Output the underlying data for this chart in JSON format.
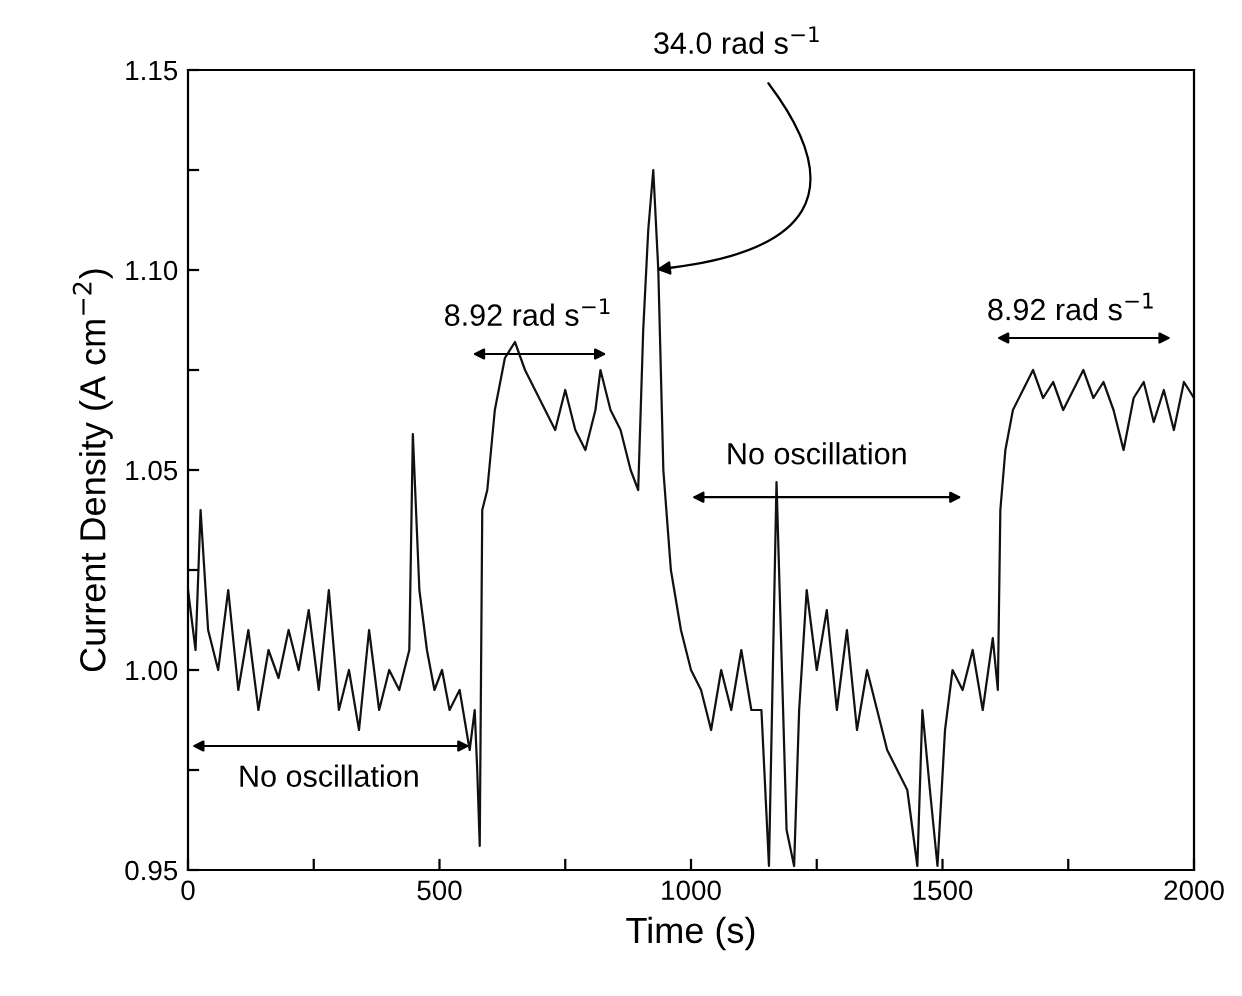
{
  "chart_data": {
    "type": "line",
    "xlabel": "Time (s)",
    "ylabel": "Current Density (A cm$^{−2}$)",
    "xlim": [
      0,
      2000
    ],
    "ylim": [
      0.95,
      1.15
    ],
    "xticks": [
      0,
      {
        "value": 250,
        "label": null
      },
      500,
      {
        "value": 750,
        "label": null
      },
      1000,
      {
        "value": 1250,
        "label": null
      },
      1500,
      {
        "value": 1750,
        "label": null
      },
      2000
    ],
    "yticks": [
      0.95,
      {
        "value": 0.975,
        "label": null
      },
      {
        "value": 1.0,
        "label": "1.00"
      },
      {
        "value": 1.025,
        "label": null
      },
      1.05,
      {
        "value": 1.075,
        "label": null
      },
      {
        "value": 1.1,
        "label": "1.10"
      },
      {
        "value": 1.125,
        "label": null
      },
      1.15
    ],
    "grid": false,
    "legend": false,
    "marker": "none",
    "line_style": "solid",
    "x": [
      0,
      15,
      25,
      40,
      60,
      80,
      100,
      120,
      140,
      160,
      180,
      200,
      220,
      240,
      260,
      280,
      300,
      320,
      340,
      360,
      380,
      400,
      420,
      440,
      447,
      460,
      475,
      490,
      505,
      520,
      540,
      560,
      570,
      575,
      580,
      585,
      595,
      610,
      630,
      650,
      670,
      690,
      710,
      730,
      750,
      770,
      790,
      810,
      820,
      840,
      860,
      880,
      895,
      905,
      915,
      925,
      935,
      945,
      960,
      980,
      1000,
      1020,
      1040,
      1060,
      1080,
      1100,
      1120,
      1140,
      1155,
      1170,
      1190,
      1205,
      1215,
      1230,
      1250,
      1270,
      1290,
      1310,
      1330,
      1350,
      1370,
      1390,
      1410,
      1430,
      1450,
      1460,
      1475,
      1490,
      1505,
      1520,
      1540,
      1560,
      1580,
      1600,
      1610,
      1615,
      1625,
      1640,
      1660,
      1680,
      1700,
      1720,
      1740,
      1760,
      1780,
      1800,
      1820,
      1840,
      1860,
      1880,
      1900,
      1920,
      1940,
      1960,
      1980,
      2000
    ],
    "series": [
      {
        "color": "#111111",
        "values": [
          1.02,
          1.005,
          1.04,
          1.01,
          1.0,
          1.02,
          0.995,
          1.01,
          0.99,
          1.005,
          0.998,
          1.01,
          1.0,
          1.015,
          0.995,
          1.02,
          0.99,
          1.0,
          0.985,
          1.01,
          0.99,
          1.0,
          0.995,
          1.005,
          1.059,
          1.02,
          1.005,
          0.995,
          1.0,
          0.99,
          0.995,
          0.98,
          0.99,
          0.975,
          0.956,
          1.04,
          1.045,
          1.065,
          1.078,
          1.082,
          1.075,
          1.07,
          1.065,
          1.06,
          1.07,
          1.06,
          1.055,
          1.065,
          1.075,
          1.065,
          1.06,
          1.05,
          1.045,
          1.085,
          1.11,
          1.125,
          1.1,
          1.05,
          1.025,
          1.01,
          1.0,
          0.995,
          0.985,
          1.0,
          0.99,
          1.005,
          0.99,
          0.99,
          0.951,
          1.047,
          0.96,
          0.951,
          0.99,
          1.02,
          1.0,
          1.015,
          0.99,
          1.01,
          0.985,
          1.0,
          0.99,
          0.98,
          0.975,
          0.97,
          0.951,
          0.99,
          0.97,
          0.951,
          0.985,
          1.0,
          0.995,
          1.005,
          0.99,
          1.008,
          0.995,
          1.04,
          1.055,
          1.065,
          1.07,
          1.075,
          1.068,
          1.072,
          1.065,
          1.07,
          1.075,
          1.068,
          1.072,
          1.065,
          1.055,
          1.068,
          1.072,
          1.062,
          1.07,
          1.06,
          1.072,
          1.068
        ]
      }
    ],
    "annotations": [
      "No oscillation",
      "8.92 rad s$^{−1}$",
      {
        "text": "34.0 rad s$^{−1}$",
        "x": 920,
        "y": 1.1
      },
      "No oscillation",
      "8.92 rad s$^{−1}$"
    ]
  }
}
